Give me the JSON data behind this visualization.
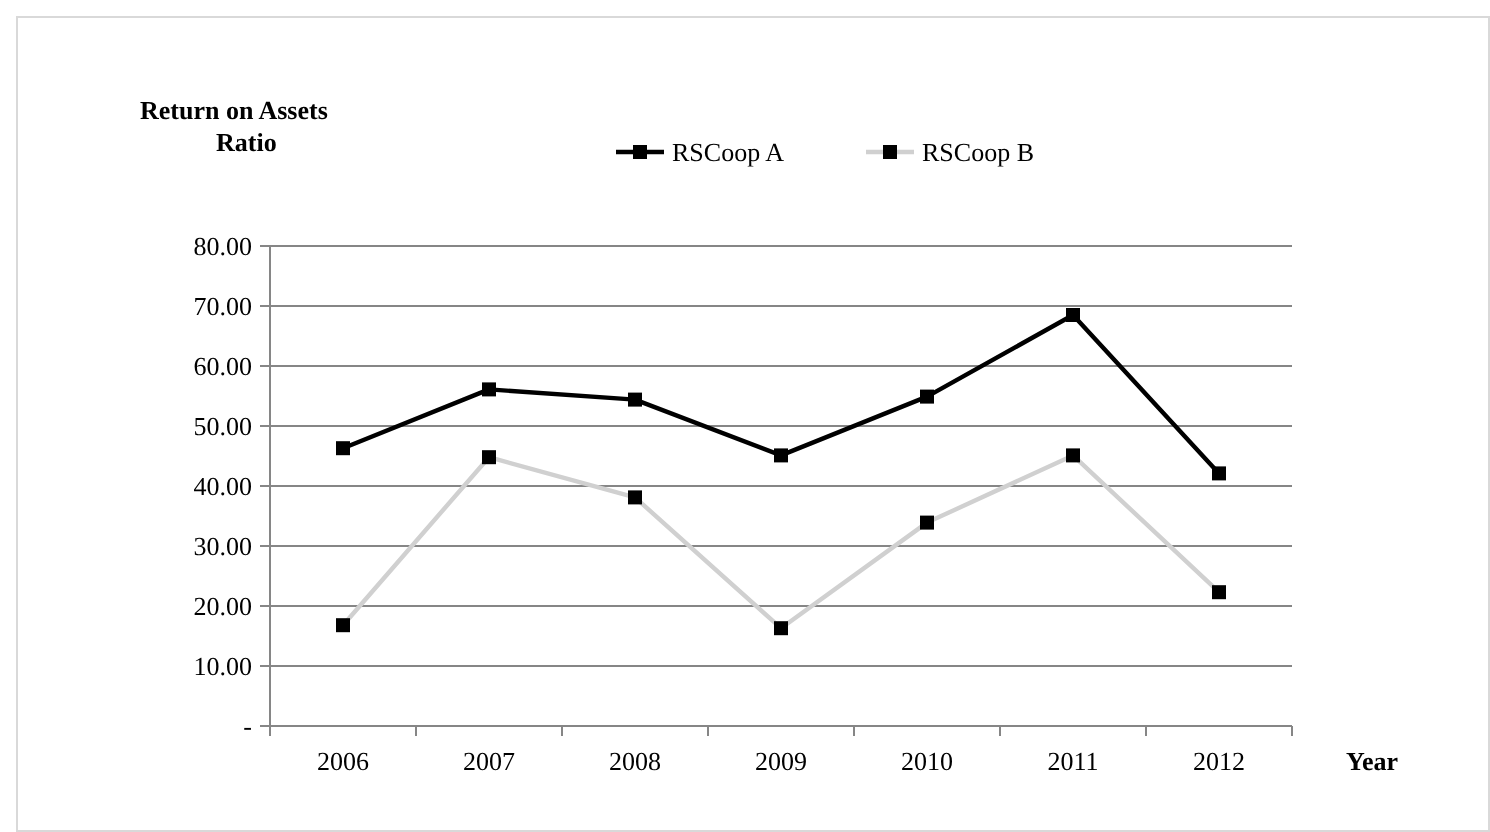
{
  "chart_data": {
    "type": "line",
    "ylabel": "Return on Assets Ratio",
    "xlabel": "Year",
    "categories": [
      "2006",
      "2007",
      "2008",
      "2009",
      "2010",
      "2011",
      "2012"
    ],
    "series": [
      {
        "name": "RSCoop A",
        "color": "#000000",
        "values": [
          46.3,
          56.1,
          54.4,
          45.1,
          54.9,
          68.5,
          42.1
        ]
      },
      {
        "name": "RSCoop B",
        "color": "#d0d0d0",
        "values": [
          16.8,
          44.8,
          38.1,
          16.3,
          33.9,
          45.1,
          22.3
        ]
      }
    ],
    "ylim": [
      0,
      80
    ],
    "yticks": [
      {
        "value": 0,
        "label": "-"
      },
      {
        "value": 10,
        "label": "10.00"
      },
      {
        "value": 20,
        "label": "20.00"
      },
      {
        "value": 30,
        "label": "30.00"
      },
      {
        "value": 40,
        "label": "40.00"
      },
      {
        "value": 50,
        "label": "50.00"
      },
      {
        "value": 60,
        "label": "60.00"
      },
      {
        "value": 70,
        "label": "70.00"
      },
      {
        "value": 80,
        "label": "80.00"
      }
    ],
    "grid": "y",
    "legend": "top",
    "marker": "square",
    "line_style": "solid"
  }
}
